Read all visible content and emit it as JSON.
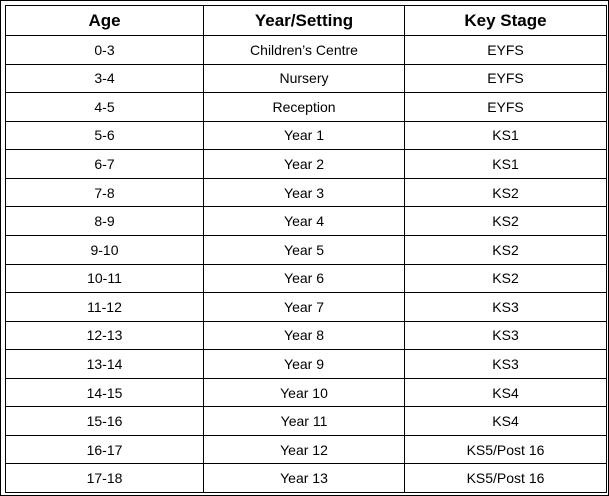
{
  "table": {
    "headers": [
      "Age",
      "Year/Setting",
      "Key Stage"
    ],
    "rows": [
      [
        "0-3",
        "Children’s Centre",
        "EYFS"
      ],
      [
        "3-4",
        "Nursery",
        "EYFS"
      ],
      [
        "4-5",
        "Reception",
        "EYFS"
      ],
      [
        "5-6",
        "Year 1",
        "KS1"
      ],
      [
        "6-7",
        "Year 2",
        "KS1"
      ],
      [
        "7-8",
        "Year 3",
        "KS2"
      ],
      [
        "8-9",
        "Year 4",
        "KS2"
      ],
      [
        "9-10",
        "Year 5",
        "KS2"
      ],
      [
        "10-11",
        "Year 6",
        "KS2"
      ],
      [
        "11-12",
        "Year 7",
        "KS3"
      ],
      [
        "12-13",
        "Year 8",
        "KS3"
      ],
      [
        "13-14",
        "Year 9",
        "KS3"
      ],
      [
        "14-15",
        "Year 10",
        "KS4"
      ],
      [
        "15-16",
        "Year 11",
        "KS4"
      ],
      [
        "16-17",
        "Year 12",
        "KS5/Post 16"
      ],
      [
        "17-18",
        "Year 13",
        "KS5/Post 16"
      ]
    ]
  }
}
